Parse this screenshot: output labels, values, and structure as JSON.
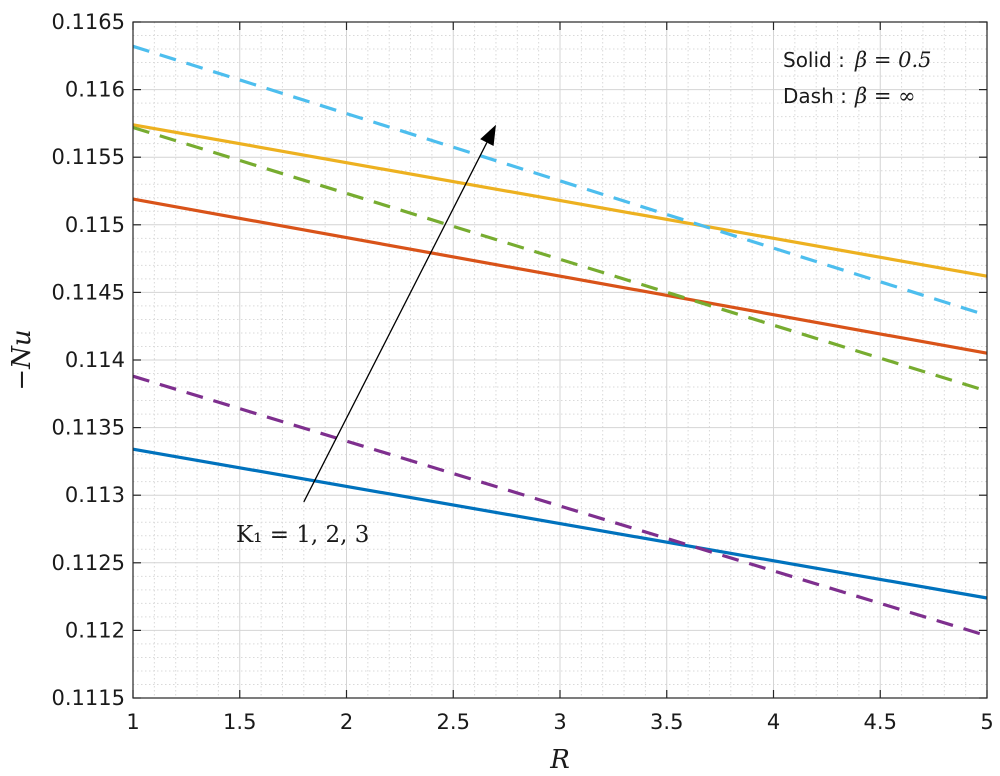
{
  "chart_data": {
    "type": "line",
    "xlabel": "R",
    "ylabel": "−Nu",
    "xlim": [
      1,
      5
    ],
    "ylim": [
      0.1115,
      0.1165
    ],
    "xticks": [
      1,
      1.5,
      2,
      2.5,
      3,
      3.5,
      4,
      4.5,
      5
    ],
    "xtick_labels": [
      "1",
      "1.5",
      "2",
      "2.5",
      "3",
      "3.5",
      "4",
      "4.5",
      "5"
    ],
    "yticks": [
      0.1115,
      0.112,
      0.1125,
      0.113,
      0.1135,
      0.114,
      0.1145,
      0.115,
      0.1155,
      0.116,
      0.1165
    ],
    "ytick_labels": [
      "0.1115",
      "0.112",
      "0.1125",
      "0.113",
      "0.1135",
      "0.114",
      "0.1145",
      "0.115",
      "0.1155",
      "0.116",
      "0.1165"
    ],
    "grid": true,
    "minor_grid": true,
    "series": [
      {
        "style": "solid",
        "color": "#0072BD",
        "x": [
          1,
          5
        ],
        "y": [
          0.11334,
          0.11224
        ]
      },
      {
        "style": "solid",
        "color": "#D95319",
        "x": [
          1,
          5
        ],
        "y": [
          0.11519,
          0.11405
        ]
      },
      {
        "style": "solid",
        "color": "#EDB120",
        "x": [
          1,
          5
        ],
        "y": [
          0.11574,
          0.11462
        ]
      },
      {
        "style": "dashed",
        "color": "#7E2F8E",
        "x": [
          1,
          5
        ],
        "y": [
          0.11388,
          0.11196
        ]
      },
      {
        "style": "dashed",
        "color": "#77AC30",
        "x": [
          1,
          5
        ],
        "y": [
          0.11572,
          0.11377
        ]
      },
      {
        "style": "dashed",
        "color": "#4DBEEE",
        "x": [
          1,
          5
        ],
        "y": [
          0.11632,
          0.11433
        ]
      }
    ],
    "legend": {
      "placement": "top-right",
      "entries": [
        {
          "label": "Solid :",
          "math": "β = 0.5"
        },
        {
          "label": "Dash :",
          "math": "β = ∞"
        }
      ]
    },
    "annotation": {
      "text": "K₁ = 1, 2, 3",
      "arrow_from": [
        1.8,
        0.11295
      ],
      "arrow_to": [
        2.7,
        0.11574
      ]
    }
  }
}
